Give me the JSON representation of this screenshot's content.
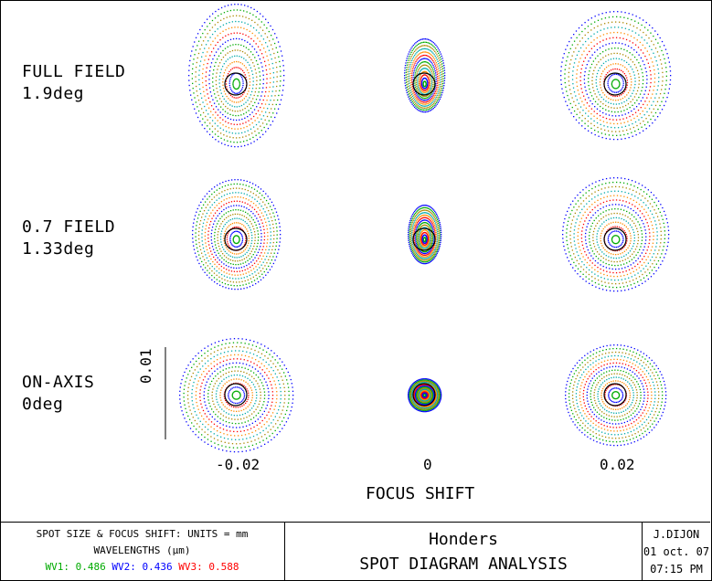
{
  "fields": [
    {
      "name": "FULL FIELD",
      "angle": "1.9deg"
    },
    {
      "name": "0.7 FIELD",
      "angle": "1.33deg"
    },
    {
      "name": "ON-AXIS",
      "angle": "0deg"
    }
  ],
  "focus_shifts": [
    "-0.02",
    "0",
    "0.02"
  ],
  "xlabel": "FOCUS SHIFT",
  "scale_bar_label": "0.01",
  "title_block": {
    "units_line": "SPOT SIZE & FOCUS SHIFT: UNITS = mm",
    "wavelengths_label": "WAVELENGTHS (μm)",
    "wavelengths": [
      {
        "label": "WV1: 0.486",
        "color": "#00aa00"
      },
      {
        "label": "WV2: 0.436",
        "color": "#0000ff"
      },
      {
        "label": "WV3: 0.588",
        "color": "#ff0000"
      }
    ],
    "designer": "Honders",
    "analysis_title": "SPOT DIAGRAM ANALYSIS",
    "author": "J.DIJON",
    "date": "01 oct. 07",
    "time": "07:15 PM"
  }
}
